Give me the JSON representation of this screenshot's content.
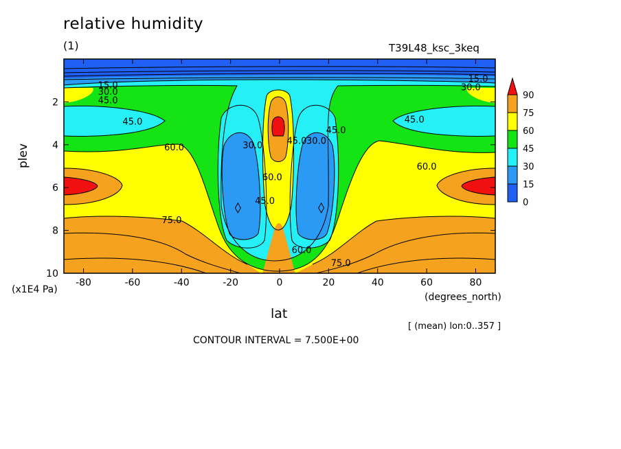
{
  "header": {
    "title": "relative humidity",
    "panel": "(1)",
    "run": "T39L48_ksc_3keq"
  },
  "footer": {
    "mean_note": "[ (mean) lon:0..357 ]",
    "contour_interval": "CONTOUR INTERVAL = 7.500E+00"
  },
  "chart_data": {
    "type": "heatmap",
    "title": "relative humidity",
    "xlabel": "lat",
    "x_unit": "(degrees_north)",
    "ylabel": "plev",
    "y_unit": "(x1E4 Pa)",
    "xlim": [
      -88,
      88
    ],
    "ylim": [
      10,
      0
    ],
    "x_ticks": [
      "-80",
      "-60",
      "-40",
      "-20",
      "0",
      "20",
      "40",
      "60",
      "80"
    ],
    "x_tick_values": [
      -80,
      -60,
      -40,
      -20,
      0,
      20,
      40,
      60,
      80
    ],
    "y_ticks": [
      "2",
      "4",
      "6",
      "8",
      "10"
    ],
    "y_tick_values": [
      2,
      4,
      6,
      8,
      10
    ],
    "contour_interval": 7.5,
    "colorbar": {
      "levels": [
        "0",
        "15",
        "30",
        "45",
        "60",
        "75",
        "90"
      ],
      "level_values": [
        0,
        15,
        30,
        45,
        60,
        75,
        90
      ],
      "colors": [
        "#1f5ff2",
        "#2b9af5",
        "#25f0f5",
        "#14e414",
        "#ffff00",
        "#f5a21e",
        "#f01010"
      ]
    },
    "contour_labels": [
      {
        "text": "15.0",
        "lat": -70,
        "p": 1.2
      },
      {
        "text": "30.0",
        "lat": -70,
        "p": 1.5
      },
      {
        "text": "45.0",
        "lat": -70,
        "p": 1.9
      },
      {
        "text": "45.0",
        "lat": -60,
        "p": 2.9
      },
      {
        "text": "60.0",
        "lat": -43,
        "p": 4.1
      },
      {
        "text": "75.0",
        "lat": -44,
        "p": 7.5
      },
      {
        "text": "30.0",
        "lat": -11,
        "p": 4.0
      },
      {
        "text": "45.0",
        "lat": -6,
        "p": 6.6
      },
      {
        "text": "60.0",
        "lat": -3,
        "p": 5.5
      },
      {
        "text": "45.0",
        "lat": 7,
        "p": 3.8
      },
      {
        "text": "30.0",
        "lat": 15,
        "p": 3.8
      },
      {
        "text": "45.0",
        "lat": 23,
        "p": 3.3
      },
      {
        "text": "60.0",
        "lat": 9,
        "p": 8.9
      },
      {
        "text": "75.0",
        "lat": 25,
        "p": 9.5
      },
      {
        "text": "60.0",
        "lat": 60,
        "p": 5.0
      },
      {
        "text": "45.0",
        "lat": 55,
        "p": 2.8
      },
      {
        "text": "30.0",
        "lat": 78,
        "p": 1.3
      },
      {
        "text": "15.0",
        "lat": 81,
        "p": 0.9
      }
    ],
    "markers": [
      {
        "shape": "diamond",
        "lat": -17,
        "p": 6.95
      },
      {
        "shape": "diamond",
        "lat": 17,
        "p": 6.95
      }
    ]
  }
}
